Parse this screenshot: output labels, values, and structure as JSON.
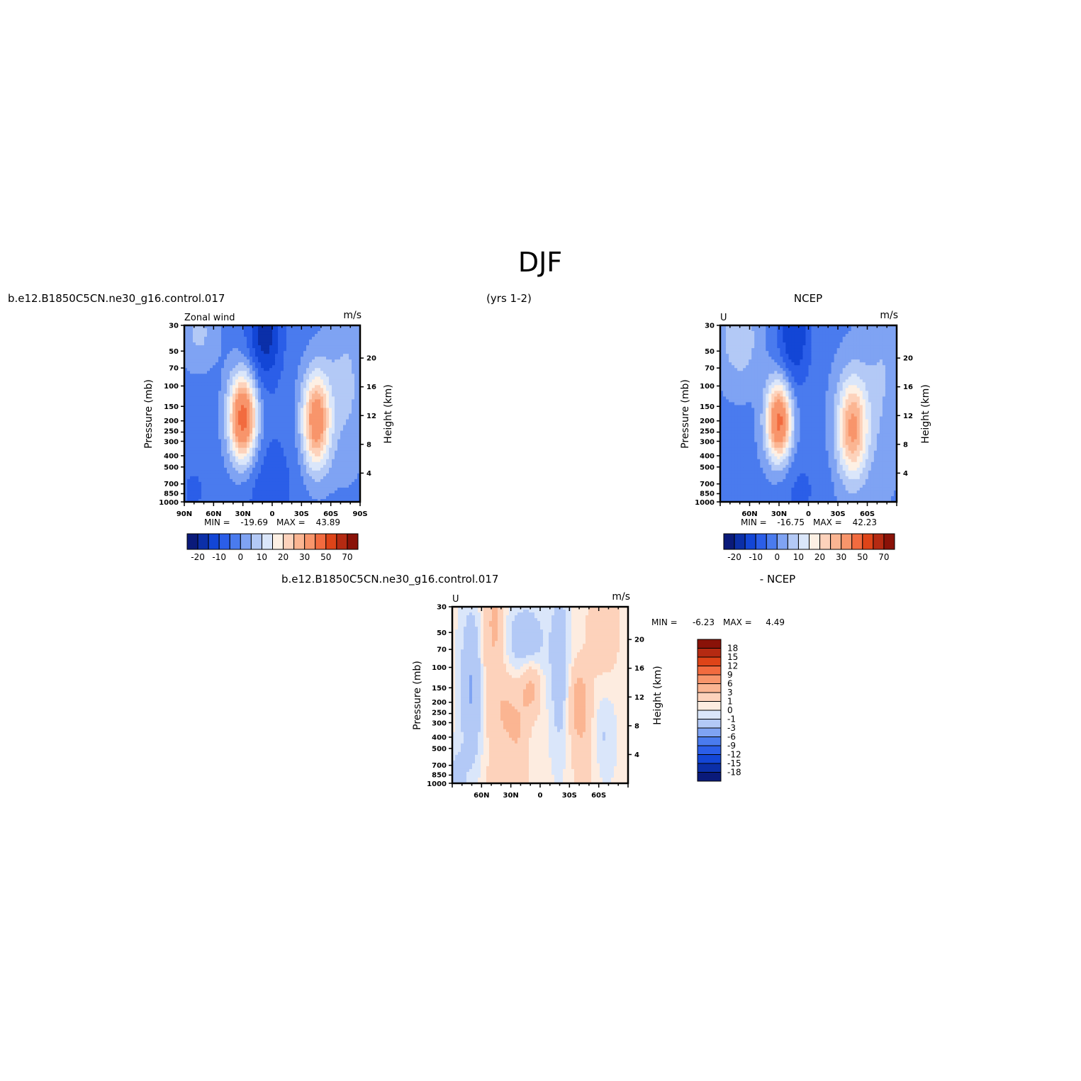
{
  "figure": {
    "title": "DJF",
    "case_name": "b.e12.B1850C5CN.ne30_g16.control.017",
    "years": "(yrs 1-2)"
  },
  "colors": {
    "full_palette": [
      "#0a1a7a",
      "#0b2fa8",
      "#1346d6",
      "#2b5ee8",
      "#4a7bee",
      "#7fa3f3",
      "#b3c9f6",
      "#dae6fa",
      "#fdf0e4",
      "#fdd2bb",
      "#fbb592",
      "#f8956b",
      "#f26b3f",
      "#de4418",
      "#b52a12",
      "#8a1208"
    ],
    "diff_palette": [
      "#0a1a7a",
      "#0b2fa8",
      "#1346d6",
      "#2b5ee8",
      "#4a7bee",
      "#7fa3f3",
      "#b3c9f6",
      "#dae6fa",
      "#fdece0",
      "#fdd2bb",
      "#fbb592",
      "#f8956b",
      "#f26b3f",
      "#de4418",
      "#b52a12",
      "#8a1208"
    ]
  },
  "colorbar": {
    "full_labels": [
      "-20",
      "-10",
      "0",
      "10",
      "20",
      "30",
      "50",
      "70"
    ],
    "diff_labels": [
      "18",
      "15",
      "12",
      "9",
      "6",
      "3",
      "1",
      "0",
      "-1",
      "-3",
      "-6",
      "-9",
      "-12",
      "-15",
      "-18"
    ]
  },
  "chart_data": [
    {
      "type": "heatmap",
      "panel": "model",
      "title_left": "b.e12.B1850C5CN.ne30_g16.control.017",
      "title_right": "",
      "variable": "Zonal wind",
      "units": "m/s",
      "ylabel": "Pressure (mb)",
      "ylabel_right": "Height (km)",
      "yticks": [
        "30",
        "50",
        "70",
        "100",
        "150",
        "200",
        "250",
        "300",
        "400",
        "500",
        "700",
        "850",
        "1000"
      ],
      "yticks_right": [
        "20",
        "16",
        "12",
        "8",
        "4"
      ],
      "xticks": [
        "90N",
        "60N",
        "30N",
        "0",
        "30S",
        "60S",
        "90S"
      ],
      "xlim": [
        90,
        -90
      ],
      "ylim": [
        1000,
        30
      ],
      "min_label": "MIN =",
      "min_value": "-19.69",
      "max_label": "MAX =",
      "max_value": "43.89",
      "jets": [
        {
          "lat": 30,
          "p": 200,
          "max": 43.89
        },
        {
          "lat": -45,
          "p": 200,
          "max": 35
        },
        {
          "lat": 10,
          "p": 50,
          "min": -19.69
        }
      ]
    },
    {
      "type": "heatmap",
      "panel": "obs",
      "title_left": "",
      "title_right": "NCEP",
      "variable": "U",
      "units": "m/s",
      "ylabel": "Pressure (mb)",
      "ylabel_right": "Height (km)",
      "yticks": [
        "30",
        "50",
        "70",
        "100",
        "150",
        "200",
        "250",
        "300",
        "400",
        "500",
        "700",
        "850",
        "1000"
      ],
      "yticks_right": [
        "20",
        "16",
        "12",
        "8",
        "4"
      ],
      "xticks": [
        "60N",
        "30N",
        "0",
        "30S",
        "60S"
      ],
      "xlim": [
        90,
        -90
      ],
      "ylim": [
        1000,
        30
      ],
      "min_label": "MIN =",
      "min_value": "-16.75",
      "max_label": "MAX =",
      "max_value": "42.23",
      "jets": [
        {
          "lat": 30,
          "p": 200,
          "max": 42.23
        },
        {
          "lat": -45,
          "p": 250,
          "max": 30
        },
        {
          "lat": 15,
          "p": 50,
          "min": -16.75
        }
      ]
    },
    {
      "type": "heatmap",
      "panel": "difference",
      "title_left": "b.e12.B1850C5CN.ne30_g16.control.017",
      "title_right": "- NCEP",
      "variable": "U",
      "units": "m/s",
      "ylabel": "Pressure (mb)",
      "ylabel_right": "Height (km)",
      "yticks": [
        "30",
        "50",
        "70",
        "100",
        "150",
        "200",
        "250",
        "300",
        "400",
        "500",
        "700",
        "850",
        "1000"
      ],
      "yticks_right": [
        "20",
        "16",
        "12",
        "8",
        "4"
      ],
      "xticks": [
        "60N",
        "30N",
        "0",
        "30S",
        "60S"
      ],
      "xlim": [
        90,
        -90
      ],
      "ylim": [
        1000,
        30
      ],
      "min_label": "MIN =",
      "min_value": "-6.23",
      "max_label": "MAX =",
      "max_value": "4.49"
    }
  ]
}
